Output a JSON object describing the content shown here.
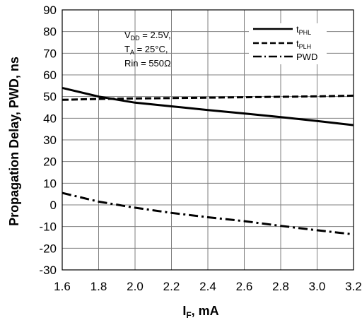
{
  "chart_data": {
    "type": "line",
    "xlabel_main": "I",
    "xlabel_sub": "F",
    "xlabel_unit": ", mA",
    "ylabel": "Propagation Delay, PWD, ns",
    "xlim": [
      1.6,
      3.2
    ],
    "ylim": [
      -30,
      90
    ],
    "grid": true,
    "legend_position": "top-right",
    "x_ticks": [
      "1.6",
      "1.8",
      "2.0",
      "2.2",
      "2.4",
      "2.6",
      "2.8",
      "3.0",
      "3.2"
    ],
    "y_ticks": [
      "90",
      "80",
      "70",
      "60",
      "50",
      "40",
      "30",
      "20",
      "10",
      "0",
      "-10",
      "-20",
      "-30"
    ],
    "annotation": {
      "vdd_main": "V",
      "vdd_sub": "DD",
      "vdd_rest": " = 2.5V,",
      "ta_main": "T",
      "ta_sub": "A",
      "ta_rest": " = 25°C,",
      "rin": "Rin = 550Ω"
    },
    "series": [
      {
        "name": "tPHL",
        "name_main": "t",
        "name_sub": "PHL",
        "style": "solid",
        "x": [
          1.6,
          1.8,
          2.0,
          2.2,
          2.4,
          2.6,
          2.8,
          3.0,
          3.2
        ],
        "y": [
          54,
          50,
          47.2,
          45.5,
          43.8,
          42.2,
          40.5,
          38.7,
          36.8
        ]
      },
      {
        "name": "tPLH",
        "name_main": "t",
        "name_sub": "PLH",
        "style": "dash",
        "x": [
          1.6,
          1.8,
          2.0,
          2.2,
          2.4,
          2.6,
          2.8,
          3.0,
          3.2
        ],
        "y": [
          48.5,
          48.9,
          49.1,
          49.3,
          49.5,
          49.7,
          49.9,
          50.1,
          50.4
        ]
      },
      {
        "name": "PWD",
        "name_main": "PWD",
        "name_sub": "",
        "style": "dashdot",
        "x": [
          1.6,
          1.8,
          2.0,
          2.2,
          2.4,
          2.6,
          2.8,
          3.0,
          3.2
        ],
        "y": [
          5.5,
          1.5,
          -1.3,
          -3.7,
          -5.7,
          -7.5,
          -9.7,
          -11.7,
          -13.6
        ]
      }
    ]
  }
}
